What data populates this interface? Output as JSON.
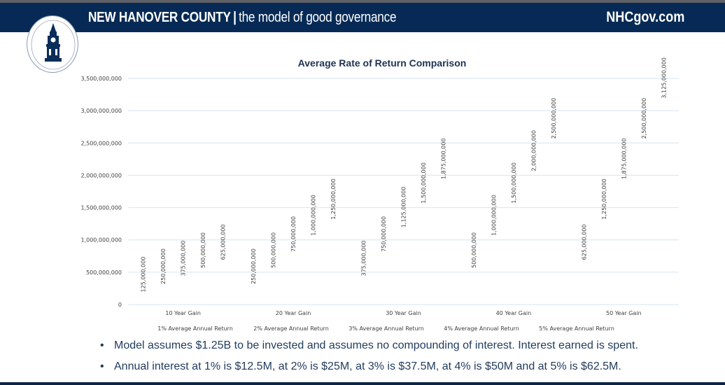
{
  "header": {
    "brand_name": "NEW HANOVER COUNTY",
    "separator": "|",
    "tagline": "the model of good governance",
    "website": "NHCgov.com",
    "seal_icon": "county-seal-clocktower",
    "colors": {
      "banner": "#062a55",
      "text": "#1f3b5c"
    }
  },
  "chart_data": {
    "type": "bar",
    "title": "Average Rate of Return Comparison",
    "xlabel": "",
    "ylabel": "",
    "categories": [
      "10 Year Gain",
      "20 Year Gain",
      "30 Year Gain",
      "40 Year Gain",
      "50 Year Gain"
    ],
    "series": [
      {
        "name": "1% Average Annual Return",
        "values": [
          125000000,
          250000000,
          375000000,
          500000000,
          625000000
        ]
      },
      {
        "name": "2% Average Annual Return",
        "values": [
          250000000,
          500000000,
          750000000,
          1000000000,
          1250000000
        ]
      },
      {
        "name": "3% Average Annual Return",
        "values": [
          375000000,
          750000000,
          1125000000,
          1500000000,
          1875000000
        ]
      },
      {
        "name": "4% Average Annual Return",
        "values": [
          500000000,
          1000000000,
          1500000000,
          2000000000,
          2500000000
        ]
      },
      {
        "name": "5% Average Annual Return",
        "values": [
          625000000,
          1250000000,
          1875000000,
          2500000000,
          3125000000
        ]
      }
    ],
    "ylim": [
      0,
      3500000000
    ],
    "yticks": [
      0,
      500000000,
      1000000000,
      1500000000,
      2000000000,
      2500000000,
      3000000000,
      3500000000
    ],
    "ytick_labels": [
      "0",
      "500,000,000",
      "1,000,000,000",
      "1,500,000,000",
      "2,000,000,000",
      "2,500,000,000",
      "3,000,000,000",
      "3,500,000,000"
    ],
    "data_labels": true,
    "data_label_orientation": "vertical",
    "bar_fill": "none",
    "grid": true,
    "legend_position": "bottom",
    "gridline_color": "#d6e4f0"
  },
  "notes": [
    "Model assumes $1.25B to be invested and assumes no compounding of interest.  Interest earned is spent.",
    "Annual interest at 1% is $12.5M, at 2% is $25M, at 3% is $37.5M, at 4% is $50M and at 5% is $62.5M."
  ],
  "bullet_char": "•"
}
